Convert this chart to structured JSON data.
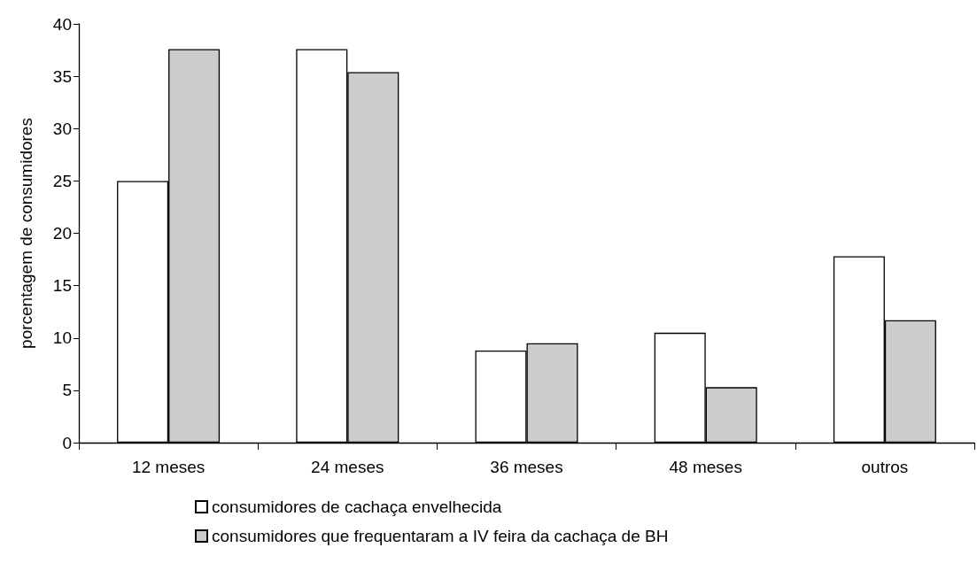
{
  "chart_data": {
    "type": "bar",
    "ylabel": "porcentagem de consumidores",
    "categories": [
      "12 meses",
      "24 meses",
      "36 meses",
      "48 meses",
      "outros"
    ],
    "series": [
      {
        "name": "consumidores de cachaça envelhecida",
        "color": "#ffffff",
        "values": [
          25,
          37.6,
          8.8,
          10.5,
          17.8
        ]
      },
      {
        "name": "consumidores que frequentaram a IV feira da cachaça de BH",
        "color": "#cccccc",
        "values": [
          37.6,
          35.4,
          9.5,
          5.3,
          11.7
        ]
      }
    ],
    "ylim": [
      0,
      40
    ],
    "yticks": [
      0,
      5,
      10,
      15,
      20,
      25,
      30,
      35,
      40
    ],
    "grid": false,
    "legend": "bottom"
  }
}
